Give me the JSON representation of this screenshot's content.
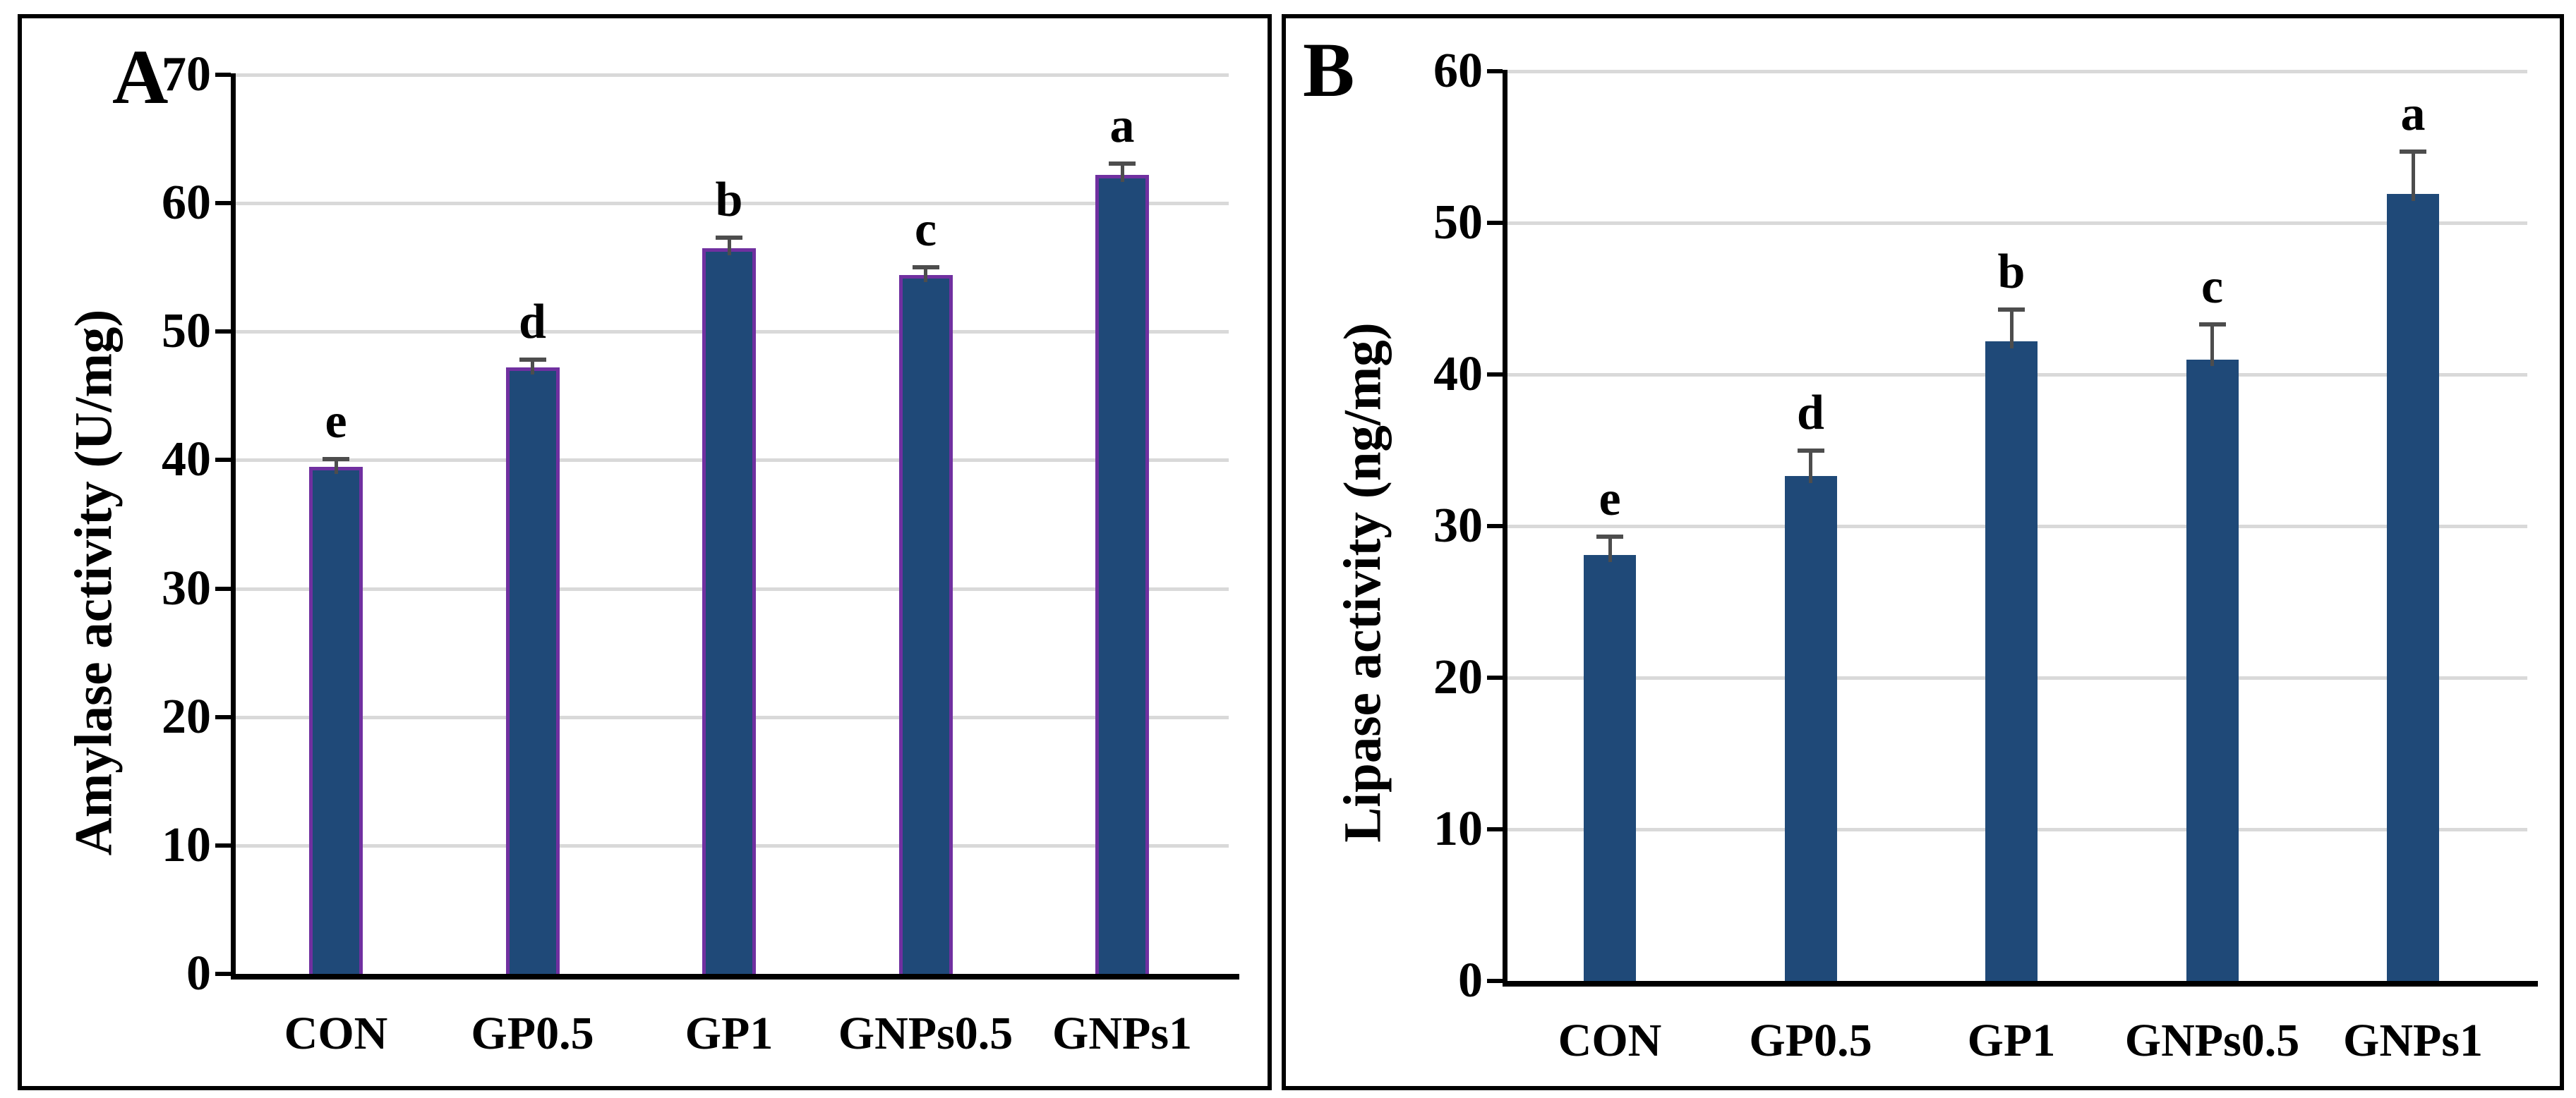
{
  "chart_data": [
    {
      "type": "bar",
      "panel_label": "A",
      "y_axis_title": "Amylase activity (U/mg)",
      "categories": [
        "CON",
        "GP0.5",
        "GP1",
        "GNPs0.5",
        "GNPs1"
      ],
      "values": [
        39.5,
        47.2,
        56.5,
        54.4,
        62.2
      ],
      "error_bars": [
        0.6,
        0.6,
        0.8,
        0.6,
        0.9
      ],
      "significance_letters": [
        "e",
        "d",
        "b",
        "c",
        "a"
      ],
      "ylim": [
        0,
        70
      ],
      "ytick_interval": 10,
      "ytick_labels": [
        "0",
        "10",
        "20",
        "30",
        "40",
        "50",
        "60",
        "70"
      ],
      "grid": "horizontal",
      "legend": "none",
      "bar_fill_color": "#1F4978",
      "bar_border_color": "#7030A0",
      "gridline_color": "#D9D9D9",
      "error_bar_color": "#4D4D4D",
      "axis_color": "#000000",
      "text_color": "#000000"
    },
    {
      "type": "bar",
      "panel_label": "B",
      "y_axis_title": "Lipase activity (ng/mg)",
      "categories": [
        "CON",
        "GP0.5",
        "GP1",
        "GNPs0.5",
        "GNPs1"
      ],
      "values": [
        28.1,
        33.3,
        42.2,
        41.0,
        51.9
      ],
      "error_bars": [
        1.2,
        1.7,
        2.1,
        2.3,
        2.8
      ],
      "significance_letters": [
        "e",
        "d",
        "b",
        "c",
        "a"
      ],
      "ylim": [
        0,
        60
      ],
      "ytick_interval": 10,
      "ytick_labels": [
        "0",
        "10",
        "20",
        "30",
        "40",
        "50",
        "60"
      ],
      "grid": "horizontal",
      "legend": "none",
      "bar_fill_color": "#1F4978",
      "bar_border_color": null,
      "gridline_color": "#D9D9D9",
      "error_bar_color": "#4D4D4D",
      "axis_color": "#000000",
      "text_color": "#000000"
    }
  ]
}
